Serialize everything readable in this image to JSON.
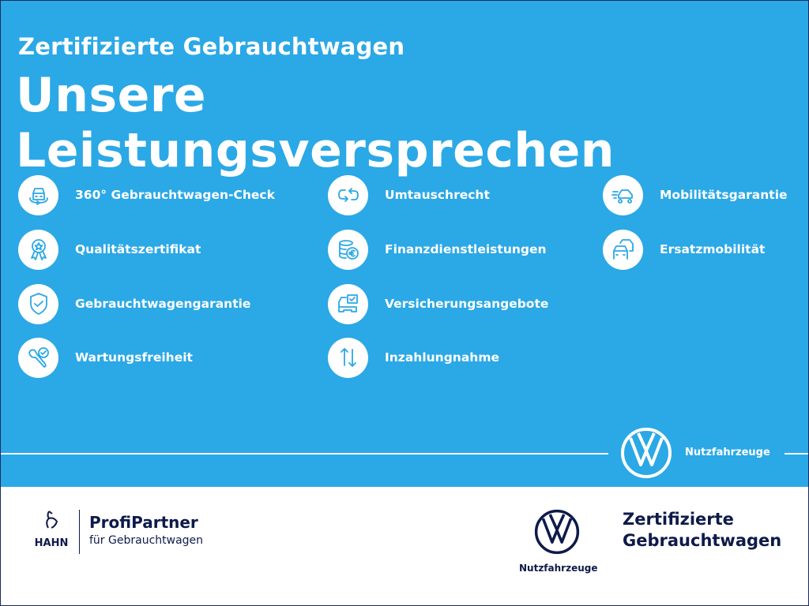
{
  "header": {
    "subtitle": "Zertifizierte Gebrauchtwagen",
    "title": "Unsere Leistungsversprechen"
  },
  "services": [
    {
      "label": "360° Gebrauchtwagen-Check",
      "icon": "car-360-icon"
    },
    {
      "label": "Qualitätszertifikat",
      "icon": "award-star-icon"
    },
    {
      "label": "Gebrauchtwagengarantie",
      "icon": "shield-check-icon"
    },
    {
      "label": "Wartungsfreiheit",
      "icon": "wrench-check-icon"
    },
    {
      "label": "Umtauschrecht",
      "icon": "exchange-arrows-icon"
    },
    {
      "label": "Finanzdienstleistungen",
      "icon": "coins-euro-icon"
    },
    {
      "label": "Versicherungsangebote",
      "icon": "car-document-icon"
    },
    {
      "label": "Inzahlungnahme",
      "icon": "up-down-arrows-icon"
    },
    {
      "label": "Mobilitätsgarantie",
      "icon": "fast-car-icon"
    },
    {
      "label": "Ersatzmobilität",
      "icon": "replacement-car-icon"
    }
  ],
  "banner": {
    "brand_label": "Nutzfahrzeuge"
  },
  "footer": {
    "dealer_logo_text": "HAHN",
    "partner_title": "ProfiPartner",
    "partner_subtitle": "für Gebrauchtwagen",
    "vw_label": "Nutzfahrzeuge",
    "cert_line1": "Zertifizierte",
    "cert_line2": "Gebrauchtwagen"
  },
  "colors": {
    "brand_blue": "#2ba8e6",
    "navy": "#0e1a4a",
    "white": "#ffffff"
  }
}
